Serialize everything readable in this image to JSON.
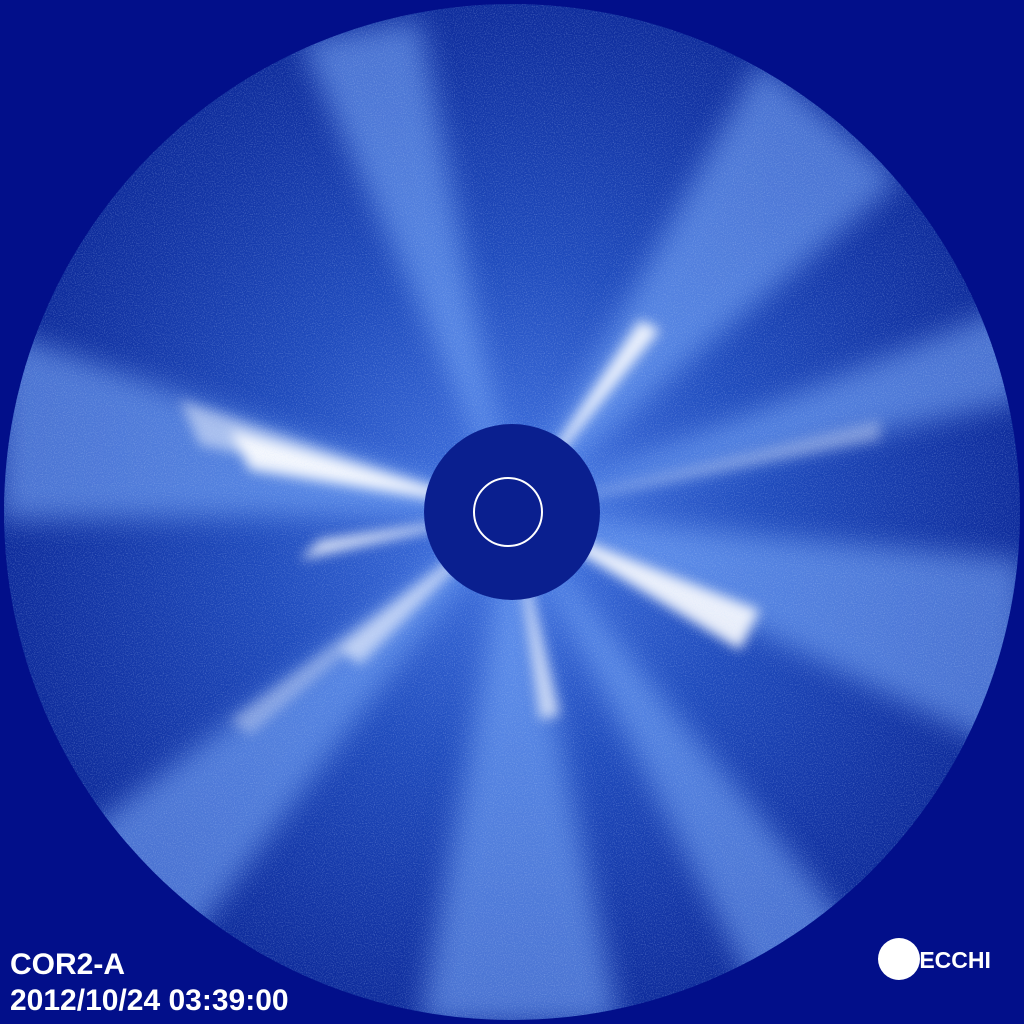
{
  "image": {
    "instrument": "COR2-A",
    "timestamp": "2012/10/24 03:39:00",
    "logo": "SECCHI",
    "colors": {
      "background": "#020f8a",
      "field": "#1a3fb0",
      "streamer": "#ffffff",
      "occulter": "#0a1f8f"
    }
  }
}
